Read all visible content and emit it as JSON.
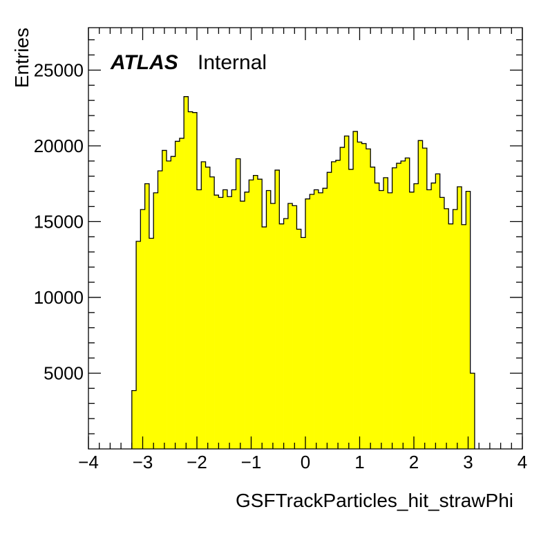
{
  "chart_data": {
    "type": "bar",
    "xlabel": "GSFTrackParticles_hit_strawPhi",
    "ylabel": "Entries",
    "label_bold": "ATLAS",
    "label_text": "Internal",
    "xlim": [
      -4,
      4
    ],
    "ylim": [
      0,
      27800
    ],
    "x_ticks": [
      -4,
      -3,
      -2,
      -1,
      0,
      1,
      2,
      3,
      4
    ],
    "y_ticks": [
      5000,
      10000,
      15000,
      20000,
      25000
    ],
    "x_tick_labels": [
      "−4",
      "−3",
      "−2",
      "−1",
      "0",
      "1",
      "2",
      "3",
      "4"
    ],
    "y_tick_labels": [
      "5000",
      "10000",
      "15000",
      "20000",
      "25000"
    ],
    "bin_start": -3.2,
    "bin_width": 0.08,
    "fill_color": "#ffff00",
    "line_color": "#000000",
    "values": [
      3850,
      13700,
      15800,
      17500,
      13900,
      16900,
      18350,
      19700,
      19000,
      19300,
      20300,
      20500,
      23250,
      22250,
      22200,
      17100,
      18950,
      18600,
      17950,
      16750,
      16600,
      17100,
      16650,
      17100,
      19150,
      16350,
      16950,
      17750,
      18050,
      17800,
      14650,
      17050,
      16200,
      18400,
      14850,
      15200,
      16200,
      16050,
      14500,
      13950,
      16500,
      16800,
      17100,
      16900,
      17200,
      18250,
      18950,
      19050,
      19900,
      20650,
      18450,
      20950,
      20250,
      20150,
      19800,
      18600,
      17550,
      17050,
      17900,
      16900,
      18550,
      18850,
      19000,
      19200,
      16950,
      17500,
      20350,
      19850,
      17100,
      17550,
      18150,
      16600,
      15850,
      14850,
      15800,
      17300,
      14800,
      17000,
      5000
    ]
  }
}
